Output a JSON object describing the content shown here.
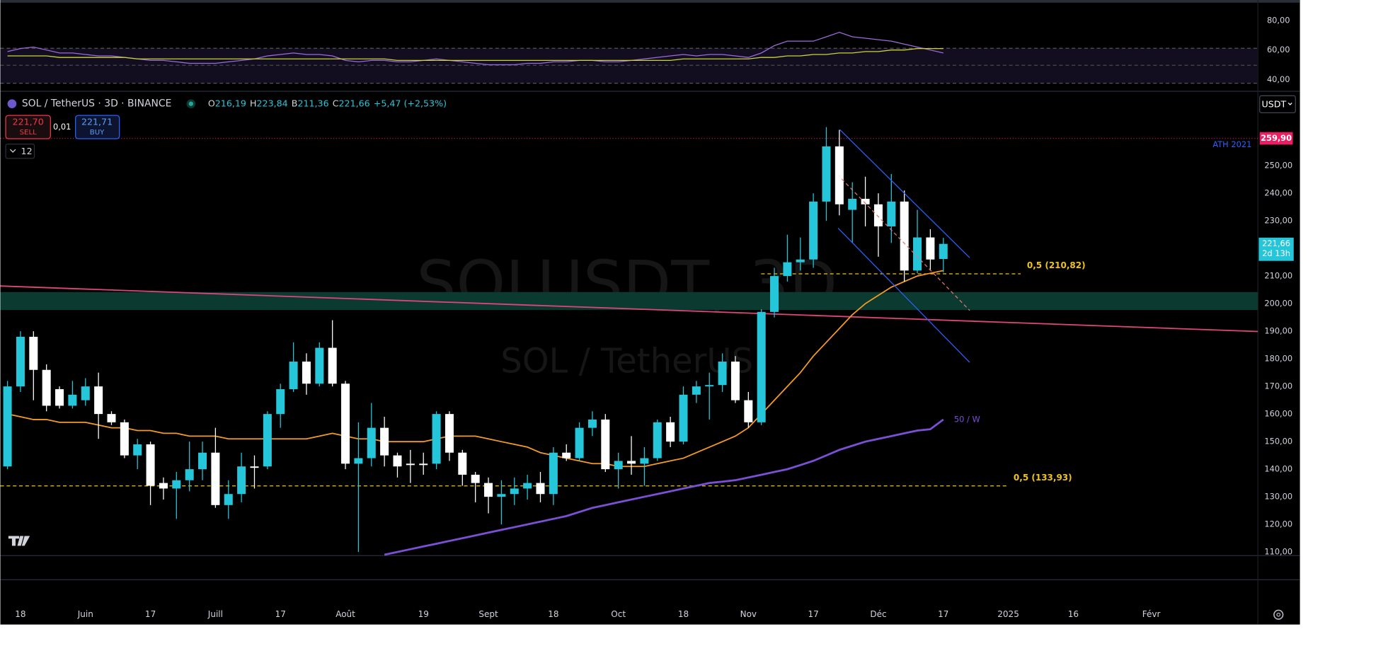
{
  "chart_data": [
    {
      "type": "line",
      "series": [
        {
          "color": "#9c6ade",
          "values": [
            59,
            61,
            62,
            60,
            58,
            58,
            57,
            56,
            56,
            55,
            54,
            53,
            53,
            52,
            51,
            51,
            51,
            52,
            53,
            54,
            56,
            57,
            58,
            57,
            57,
            56,
            53,
            52,
            53,
            53,
            52,
            52,
            53,
            54,
            53,
            52,
            51,
            50,
            50,
            50,
            51,
            51,
            52,
            52,
            53,
            53,
            52,
            52,
            53,
            54,
            55,
            56,
            57,
            56,
            57,
            57,
            56,
            55,
            58,
            63,
            66,
            66,
            66,
            69,
            72,
            69,
            68,
            67,
            66,
            64,
            62,
            60,
            58
          ]
        },
        {
          "color": "#c8d43a",
          "values": [
            56,
            56,
            56,
            56,
            55,
            55,
            55,
            55,
            55,
            55,
            54,
            54,
            54,
            54,
            54,
            54,
            54,
            54,
            54,
            54,
            54,
            54,
            54,
            54,
            54,
            54,
            54,
            54,
            54,
            54,
            53,
            53,
            53,
            53,
            53,
            53,
            53,
            53,
            53,
            53,
            53,
            53,
            53,
            53,
            53,
            53,
            53,
            53,
            53,
            53,
            53,
            53,
            54,
            54,
            54,
            54,
            54,
            54,
            55,
            55,
            56,
            56,
            57,
            57,
            58,
            58,
            59,
            59,
            60,
            60,
            61,
            61,
            61
          ]
        }
      ],
      "ylim": [
        33.3,
        93.9
      ],
      "yticks": [
        {
          "value": 80,
          "label": "80,00"
        },
        {
          "value": 60,
          "label": "60,00"
        },
        {
          "value": 40,
          "label": "40,00"
        }
      ]
    },
    {
      "type": "candlestick",
      "title": "SOL / TetherUS · 3D · BINANCE",
      "watermark": "SOLUSDT, 3D",
      "watermark_sub": "SOL / TetherUS",
      "ohlc": [
        {
          "key": "O",
          "value": "216,19"
        },
        {
          "key": "H",
          "value": "223,84"
        },
        {
          "key": "B",
          "value": "211,36"
        },
        {
          "key": "C",
          "value": "221,66"
        }
      ],
      "change": "+5,47 (+2,53%)",
      "categories": [
        null,
        null,
        null,
        null,
        null,
        null,
        null,
        null,
        null,
        null,
        null,
        null,
        null,
        null,
        null,
        null,
        null,
        null,
        null,
        null,
        null,
        null,
        null,
        null,
        null,
        null,
        null,
        null,
        null,
        null,
        null,
        null,
        null,
        null,
        null,
        null,
        null,
        null,
        null,
        null,
        null,
        null,
        null,
        null,
        null,
        null,
        null,
        null,
        null,
        null,
        null,
        null,
        null,
        null,
        null,
        null,
        null,
        null,
        null,
        null,
        null,
        null,
        null,
        null,
        null,
        null,
        null,
        null,
        null,
        null,
        null,
        null,
        null
      ],
      "open": [
        141,
        170,
        188,
        176,
        169,
        163,
        165,
        170,
        160,
        157,
        145,
        149,
        135,
        133,
        136,
        140,
        146,
        127,
        131,
        141,
        141,
        160,
        169,
        179,
        171,
        184,
        171,
        142,
        144,
        155,
        145,
        142,
        142,
        142,
        160,
        146,
        138,
        135,
        130,
        131,
        133,
        135,
        131,
        146,
        144,
        155,
        158,
        140,
        143,
        142,
        144,
        157,
        150,
        167,
        170,
        170.5,
        179,
        165,
        157,
        197,
        210,
        215,
        216,
        237,
        257,
        234,
        238,
        236,
        228,
        237,
        212,
        224,
        216.19
      ],
      "high": [
        172,
        190,
        190,
        178,
        170,
        172,
        173,
        175,
        161,
        158,
        151,
        150,
        137,
        139,
        150,
        150,
        155,
        136,
        146,
        145,
        161,
        171,
        186,
        182,
        186,
        194,
        172,
        157,
        164,
        159,
        146,
        147,
        146,
        161,
        161,
        147,
        139,
        137,
        136,
        137,
        138,
        139,
        148,
        149,
        157,
        161,
        160,
        146,
        152,
        148,
        158,
        159,
        170,
        172,
        175,
        182,
        181,
        168,
        198,
        213,
        225,
        224,
        240,
        264,
        263,
        244,
        246,
        240,
        247,
        241,
        234,
        227,
        223.84
      ],
      "low": [
        140,
        168,
        165,
        161,
        162,
        162,
        163,
        151,
        156,
        144,
        140,
        127,
        129,
        122,
        132,
        136,
        126,
        122,
        128,
        133,
        140,
        155,
        168,
        167,
        170,
        170,
        140,
        110,
        141,
        141,
        137,
        135,
        138,
        140,
        143,
        134,
        128,
        124,
        120,
        127,
        129,
        128,
        127,
        143,
        143,
        152,
        139,
        133,
        138,
        134,
        143,
        148,
        149,
        164,
        158,
        168,
        164,
        155,
        156,
        195,
        208,
        212,
        213,
        230,
        232,
        222,
        228,
        217,
        222,
        208,
        211,
        212,
        211.36
      ],
      "close": [
        170,
        188,
        176,
        163,
        163,
        167,
        170,
        160,
        157,
        145,
        149,
        134,
        133,
        136,
        140,
        146,
        127,
        131,
        141,
        140.5,
        160,
        169,
        179,
        171,
        184,
        171,
        142,
        144,
        155,
        145,
        141,
        141.5,
        141.5,
        160,
        146,
        138,
        135,
        130,
        131,
        133,
        135,
        131,
        146,
        144,
        155,
        158,
        140,
        143,
        142,
        144,
        157,
        150,
        167,
        170,
        170.5,
        179,
        165,
        157,
        197,
        210,
        215,
        216,
        237,
        257,
        236,
        238,
        236,
        228,
        237,
        212,
        224,
        216,
        221.66
      ],
      "up_color": "#26c6da",
      "down_color": "#ffffff",
      "xlim": [
        -0.55,
        96.2
      ],
      "xticks": [
        {
          "value": 1,
          "label": "18"
        },
        {
          "value": 6,
          "label": "Juin"
        },
        {
          "value": 11,
          "label": "17"
        },
        {
          "value": 16,
          "label": "Juill"
        },
        {
          "value": 21,
          "label": "17"
        },
        {
          "value": 26,
          "label": "Août"
        },
        {
          "value": 32,
          "label": "19"
        },
        {
          "value": 37,
          "label": "Sept"
        },
        {
          "value": 42,
          "label": "18"
        },
        {
          "value": 47,
          "label": "Oct"
        },
        {
          "value": 52,
          "label": "18"
        },
        {
          "value": 57,
          "label": "Nov"
        },
        {
          "value": 62,
          "label": "17"
        },
        {
          "value": 67,
          "label": "Déc"
        },
        {
          "value": 72,
          "label": "17"
        },
        {
          "value": 77,
          "label": "2025"
        },
        {
          "value": 82,
          "label": "16"
        },
        {
          "value": 88,
          "label": "Févr"
        }
      ],
      "ylim": [
        109,
        276
      ],
      "yticks": [
        {
          "value": 110,
          "label": "110,00"
        },
        {
          "value": 120,
          "label": "120,00"
        },
        {
          "value": 130,
          "label": "130,00"
        },
        {
          "value": 140,
          "label": "140,00"
        },
        {
          "value": 150,
          "label": "150,00"
        },
        {
          "value": 160,
          "label": "160,00"
        },
        {
          "value": 170,
          "label": "170,00"
        },
        {
          "value": 180,
          "label": "180,00"
        },
        {
          "value": 190,
          "label": "190,00"
        },
        {
          "value": 200,
          "label": "200,00"
        },
        {
          "value": 210,
          "label": "210,00"
        },
        {
          "value": 220,
          "label": "220,00"
        },
        {
          "value": 230,
          "label": "230,00"
        },
        {
          "value": 240,
          "label": "240,00"
        },
        {
          "value": 250,
          "label": "250,00"
        }
      ],
      "overlays": [
        {
          "name": "50 / W",
          "color": "#7b4fd6",
          "values": [
            null,
            null,
            null,
            null,
            null,
            null,
            null,
            null,
            null,
            null,
            null,
            null,
            null,
            null,
            null,
            null,
            null,
            null,
            null,
            null,
            null,
            null,
            null,
            null,
            null,
            null,
            null,
            null,
            null,
            109,
            110,
            111,
            112,
            113,
            114,
            115,
            116,
            117,
            118,
            119,
            120,
            121,
            122,
            123,
            124.5,
            126,
            127,
            128,
            129,
            130,
            131,
            132,
            133,
            134,
            135,
            135.5,
            136,
            137,
            138,
            139,
            140,
            141.5,
            143,
            145,
            147,
            148.5,
            150,
            151,
            152,
            153,
            154,
            154.5,
            158
          ]
        },
        {
          "color": "#f59b23",
          "values": [
            160,
            159,
            158,
            158,
            157,
            157,
            157,
            156,
            155,
            155,
            154,
            154,
            153,
            153,
            152,
            152,
            152,
            151,
            151,
            151,
            151,
            151,
            151,
            151,
            152,
            153,
            152,
            151,
            151,
            150,
            150,
            150,
            150,
            151,
            152,
            152,
            152,
            151,
            150,
            149,
            148,
            146,
            145,
            144,
            143,
            142,
            142,
            141,
            141,
            141,
            142,
            143,
            144,
            146,
            148,
            150,
            152,
            155,
            160,
            165,
            170,
            175,
            181,
            186,
            191,
            196,
            200,
            203,
            206,
            208,
            210,
            211,
            212
          ]
        }
      ],
      "levels": [
        {
          "value": 210.82,
          "label": "0,5 (210,82)",
          "color": "#f0c419"
        },
        {
          "value": 133.93,
          "label": "0,5 (133,93)",
          "color": "#f0c419"
        }
      ],
      "ath": {
        "value": 259.9,
        "label": "259,90",
        "note": "ATH 2021",
        "color": "#e91e63"
      },
      "last": {
        "value": 221.66,
        "label": "221,66",
        "countdown": "2d 13h",
        "color": "#26c6da"
      },
      "zone": {
        "from": 197.7,
        "to": 204.2,
        "color": "#0b3a30"
      },
      "trendline": {
        "from": 206.4,
        "to": 189.9,
        "color": "#e0457b"
      }
    }
  ],
  "ui": {
    "sell_price": "221,70",
    "sell": "SELL",
    "spread": "0,01",
    "buy_price": "221,71",
    "buy": "BUY",
    "interval": "12",
    "currency": "USDT"
  }
}
